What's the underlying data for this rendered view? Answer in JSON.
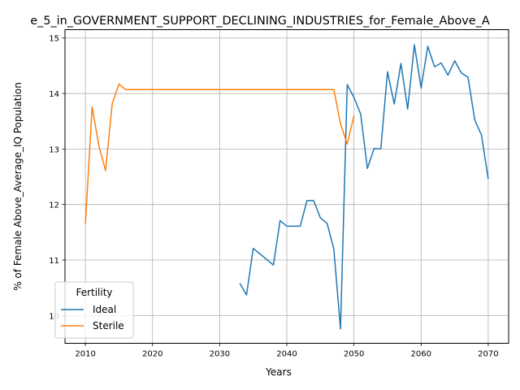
{
  "chart_data": {
    "type": "line",
    "title": "e_5_in_GOVERNMENT_SUPPORT_DECLINING_INDUSTRIES_for_Female_Above_A",
    "xlabel": "Years",
    "ylabel": "% of Female Above_Average_IQ Population",
    "xlim": [
      2006.96,
      2073.04
    ],
    "ylim": [
      9.5,
      15.15
    ],
    "xticks": [
      2010,
      2020,
      2030,
      2040,
      2050,
      2060,
      2070
    ],
    "yticks": [
      10,
      11,
      12,
      13,
      14,
      15
    ],
    "grid": true,
    "legend": {
      "title": "Fertility",
      "position": "lower-left"
    },
    "series": [
      {
        "name": "Ideal",
        "color": "#1f77b4",
        "x": [
          2033,
          2034,
          2035,
          2036,
          2037,
          2038,
          2039,
          2040,
          2041,
          2042,
          2043,
          2044,
          2045,
          2046,
          2047,
          2048,
          2049,
          2050,
          2051,
          2052,
          2053,
          2054,
          2055,
          2056,
          2057,
          2058,
          2059,
          2060,
          2061,
          2062,
          2063,
          2064,
          2065,
          2066,
          2067,
          2068,
          2069,
          2070
        ],
        "values": [
          10.58,
          10.37,
          11.21,
          11.11,
          11.01,
          10.91,
          11.71,
          11.61,
          11.61,
          11.61,
          12.07,
          12.07,
          11.76,
          11.66,
          11.2,
          9.76,
          14.16,
          13.93,
          13.63,
          12.65,
          13.01,
          13.0,
          14.39,
          13.81,
          14.54,
          13.72,
          14.88,
          14.1,
          14.85,
          14.48,
          14.55,
          14.33,
          14.59,
          14.37,
          14.29,
          13.52,
          13.25,
          12.46
        ]
      },
      {
        "name": "Sterile",
        "color": "#ff7f0e",
        "x": [
          2010,
          2011,
          2012,
          2013,
          2014,
          2015,
          2016,
          2017,
          2018,
          2019,
          2020,
          2021,
          2022,
          2023,
          2024,
          2025,
          2026,
          2027,
          2028,
          2029,
          2030,
          2031,
          2032,
          2033,
          2034,
          2035,
          2036,
          2037,
          2038,
          2039,
          2040,
          2041,
          2042,
          2043,
          2044,
          2045,
          2046,
          2047,
          2048,
          2049,
          2050
        ],
        "values": [
          11.65,
          13.76,
          13.06,
          12.61,
          13.82,
          14.17,
          14.07,
          14.07,
          14.07,
          14.07,
          14.07,
          14.07,
          14.07,
          14.07,
          14.07,
          14.07,
          14.07,
          14.07,
          14.07,
          14.07,
          14.07,
          14.07,
          14.07,
          14.07,
          14.07,
          14.07,
          14.07,
          14.07,
          14.07,
          14.07,
          14.07,
          14.07,
          14.07,
          14.07,
          14.07,
          14.07,
          14.07,
          14.07,
          13.45,
          13.09,
          13.6
        ]
      }
    ]
  }
}
